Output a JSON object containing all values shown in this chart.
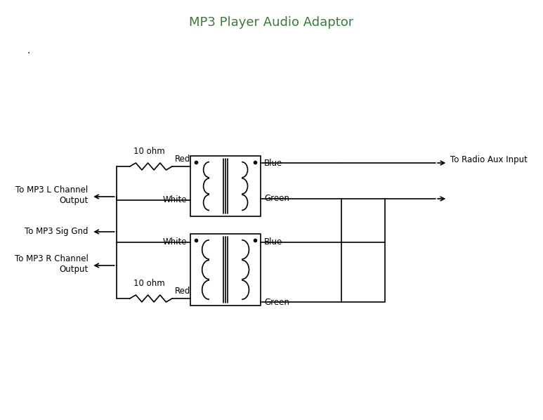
{
  "title": "MP3 Player Audio Adaptor",
  "title_color": "#3a7a3a",
  "title_fontsize": 13,
  "bg_color": "#ffffff",
  "line_color": "#000000",
  "label_color": "#000000",
  "dot_label": ".",
  "labels": {
    "mp3_l": "To MP3 L Channel\nOutput",
    "mp3_gnd": "To MP3 Sig Gnd",
    "mp3_r": "To MP3 R Channel\nOutput",
    "radio": "To Radio Aux Input",
    "red_top": "Red",
    "white_top": "White",
    "blue_top": "Blue",
    "green_top": "Green",
    "ohm_top": "10 ohm",
    "red_bot": "Red",
    "white_bot": "White",
    "blue_bot": "Blue",
    "green_bot": "Green",
    "ohm_bot": "10 ohm"
  },
  "figsize": [
    7.73,
    5.98
  ],
  "dpi": 100
}
